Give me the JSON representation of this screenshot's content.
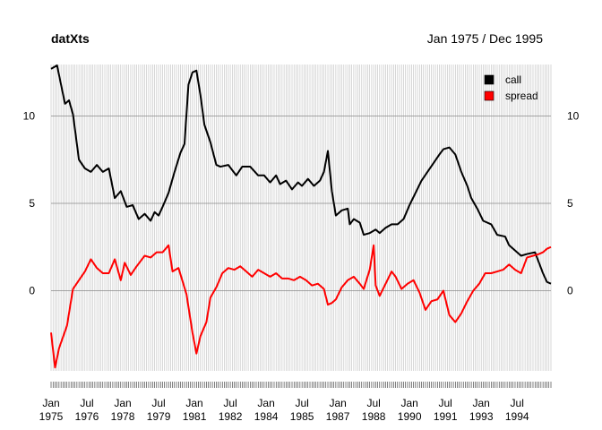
{
  "chart_data": {
    "type": "line",
    "title": "datXts",
    "subtitle": "Jan 1975 / Dec 1995",
    "x_start": "1975-01",
    "x_end": "1995-12",
    "xlim": [
      "1975-01",
      "1995-12"
    ],
    "ylim": [
      -4.5,
      13.3
    ],
    "y_ticks": [
      0,
      5,
      10
    ],
    "y_tick_labels": [
      "0",
      "5",
      "10"
    ],
    "x_tick_labels": [
      {
        "month": "1975-01",
        "label1": "Jan",
        "label2": "1975"
      },
      {
        "month": "1976-07",
        "label1": "Jul",
        "label2": "1976"
      },
      {
        "month": "1978-01",
        "label1": "Jan",
        "label2": "1978"
      },
      {
        "month": "1979-07",
        "label1": "Jul",
        "label2": "1979"
      },
      {
        "month": "1981-01",
        "label1": "Jan",
        "label2": "1981"
      },
      {
        "month": "1982-07",
        "label1": "Jul",
        "label2": "1982"
      },
      {
        "month": "1984-01",
        "label1": "Jan",
        "label2": "1984"
      },
      {
        "month": "1985-07",
        "label1": "Jul",
        "label2": "1985"
      },
      {
        "month": "1987-01",
        "label1": "Jan",
        "label2": "1987"
      },
      {
        "month": "1988-07",
        "label1": "Jul",
        "label2": "1988"
      },
      {
        "month": "1990-01",
        "label1": "Jan",
        "label2": "1990"
      },
      {
        "month": "1991-07",
        "label1": "Jul",
        "label2": "1991"
      },
      {
        "month": "1993-01",
        "label1": "Jan",
        "label2": "1993"
      },
      {
        "month": "1994-07",
        "label1": "Jul",
        "label2": "1994"
      }
    ],
    "grid": true,
    "legend_position": "top-right",
    "series": [
      {
        "name": "call",
        "color": "#000000",
        "points": [
          [
            "1975-01",
            12.7
          ],
          [
            "1975-04",
            12.9
          ],
          [
            "1975-08",
            10.7
          ],
          [
            "1975-10",
            10.9
          ],
          [
            "1975-12",
            10.1
          ],
          [
            "1976-03",
            7.5
          ],
          [
            "1976-06",
            7.0
          ],
          [
            "1976-09",
            6.8
          ],
          [
            "1976-12",
            7.2
          ],
          [
            "1977-03",
            6.8
          ],
          [
            "1977-06",
            7.0
          ],
          [
            "1977-09",
            5.3
          ],
          [
            "1977-12",
            5.7
          ],
          [
            "1978-03",
            4.8
          ],
          [
            "1978-06",
            4.9
          ],
          [
            "1978-09",
            4.1
          ],
          [
            "1978-12",
            4.4
          ],
          [
            "1979-03",
            4.0
          ],
          [
            "1979-05",
            4.5
          ],
          [
            "1979-07",
            4.3
          ],
          [
            "1979-09",
            4.8
          ],
          [
            "1979-12",
            5.6
          ],
          [
            "1980-03",
            6.8
          ],
          [
            "1980-06",
            7.9
          ],
          [
            "1980-08",
            8.4
          ],
          [
            "1980-10",
            11.8
          ],
          [
            "1980-12",
            12.5
          ],
          [
            "1981-02",
            12.6
          ],
          [
            "1981-04",
            11.2
          ],
          [
            "1981-06",
            9.5
          ],
          [
            "1981-09",
            8.5
          ],
          [
            "1981-12",
            7.2
          ],
          [
            "1982-02",
            7.1
          ],
          [
            "1982-06",
            7.2
          ],
          [
            "1982-10",
            6.6
          ],
          [
            "1983-01",
            7.1
          ],
          [
            "1983-05",
            7.1
          ],
          [
            "1983-09",
            6.6
          ],
          [
            "1983-12",
            6.6
          ],
          [
            "1984-03",
            6.2
          ],
          [
            "1984-06",
            6.6
          ],
          [
            "1984-08",
            6.1
          ],
          [
            "1984-11",
            6.3
          ],
          [
            "1985-02",
            5.8
          ],
          [
            "1985-05",
            6.2
          ],
          [
            "1985-07",
            6.0
          ],
          [
            "1985-10",
            6.4
          ],
          [
            "1986-01",
            6.0
          ],
          [
            "1986-04",
            6.3
          ],
          [
            "1986-06",
            6.8
          ],
          [
            "1986-08",
            8.0
          ],
          [
            "1986-10",
            5.7
          ],
          [
            "1986-12",
            4.3
          ],
          [
            "1987-03",
            4.6
          ],
          [
            "1987-06",
            4.7
          ],
          [
            "1987-07",
            3.8
          ],
          [
            "1987-09",
            4.1
          ],
          [
            "1987-12",
            3.9
          ],
          [
            "1988-02",
            3.2
          ],
          [
            "1988-05",
            3.3
          ],
          [
            "1988-08",
            3.5
          ],
          [
            "1988-10",
            3.3
          ],
          [
            "1989-01",
            3.6
          ],
          [
            "1989-04",
            3.8
          ],
          [
            "1989-07",
            3.8
          ],
          [
            "1989-10",
            4.1
          ],
          [
            "1990-01",
            4.9
          ],
          [
            "1990-04",
            5.6
          ],
          [
            "1990-07",
            6.3
          ],
          [
            "1990-10",
            6.8
          ],
          [
            "1991-01",
            7.3
          ],
          [
            "1991-04",
            7.8
          ],
          [
            "1991-06",
            8.1
          ],
          [
            "1991-09",
            8.2
          ],
          [
            "1991-12",
            7.8
          ],
          [
            "1992-03",
            6.8
          ],
          [
            "1992-06",
            6.0
          ],
          [
            "1992-08",
            5.3
          ],
          [
            "1992-11",
            4.7
          ],
          [
            "1993-02",
            4.0
          ],
          [
            "1993-06",
            3.8
          ],
          [
            "1993-09",
            3.2
          ],
          [
            "1994-01",
            3.1
          ],
          [
            "1994-03",
            2.6
          ],
          [
            "1994-06",
            2.3
          ],
          [
            "1994-09",
            2.0
          ],
          [
            "1994-12",
            2.1
          ],
          [
            "1995-04",
            2.2
          ],
          [
            "1995-06",
            1.6
          ],
          [
            "1995-08",
            1.0
          ],
          [
            "1995-10",
            0.5
          ],
          [
            "1995-12",
            0.4
          ]
        ]
      },
      {
        "name": "spread",
        "color": "#ff0000",
        "points": [
          [
            "1975-01",
            -2.4
          ],
          [
            "1975-03",
            -4.4
          ],
          [
            "1975-05",
            -3.3
          ],
          [
            "1975-09",
            -2.0
          ],
          [
            "1975-12",
            0.1
          ],
          [
            "1976-03",
            0.6
          ],
          [
            "1976-06",
            1.1
          ],
          [
            "1976-09",
            1.8
          ],
          [
            "1976-12",
            1.3
          ],
          [
            "1977-03",
            1.0
          ],
          [
            "1977-06",
            1.0
          ],
          [
            "1977-09",
            1.8
          ],
          [
            "1977-12",
            0.6
          ],
          [
            "1978-02",
            1.6
          ],
          [
            "1978-05",
            0.9
          ],
          [
            "1978-08",
            1.4
          ],
          [
            "1978-12",
            2.0
          ],
          [
            "1979-03",
            1.9
          ],
          [
            "1979-06",
            2.2
          ],
          [
            "1979-09",
            2.2
          ],
          [
            "1979-12",
            2.6
          ],
          [
            "1980-02",
            1.1
          ],
          [
            "1980-05",
            1.3
          ],
          [
            "1980-09",
            -0.2
          ],
          [
            "1980-12",
            -2.4
          ],
          [
            "1981-02",
            -3.6
          ],
          [
            "1981-04",
            -2.6
          ],
          [
            "1981-07",
            -1.8
          ],
          [
            "1981-09",
            -0.4
          ],
          [
            "1981-12",
            0.2
          ],
          [
            "1982-03",
            1.0
          ],
          [
            "1982-06",
            1.3
          ],
          [
            "1982-09",
            1.2
          ],
          [
            "1982-12",
            1.4
          ],
          [
            "1983-03",
            1.1
          ],
          [
            "1983-06",
            0.8
          ],
          [
            "1983-09",
            1.2
          ],
          [
            "1983-12",
            1.0
          ],
          [
            "1984-03",
            0.8
          ],
          [
            "1984-06",
            1.0
          ],
          [
            "1984-09",
            0.7
          ],
          [
            "1984-12",
            0.7
          ],
          [
            "1985-03",
            0.6
          ],
          [
            "1985-06",
            0.8
          ],
          [
            "1985-09",
            0.6
          ],
          [
            "1985-12",
            0.3
          ],
          [
            "1986-03",
            0.4
          ],
          [
            "1986-06",
            0.1
          ],
          [
            "1986-08",
            -0.8
          ],
          [
            "1986-10",
            -0.7
          ],
          [
            "1986-12",
            -0.5
          ],
          [
            "1987-03",
            0.2
          ],
          [
            "1987-06",
            0.6
          ],
          [
            "1987-09",
            0.8
          ],
          [
            "1987-12",
            0.4
          ],
          [
            "1988-02",
            0.1
          ],
          [
            "1988-05",
            1.2
          ],
          [
            "1988-07",
            2.6
          ],
          [
            "1988-08",
            0.3
          ],
          [
            "1988-10",
            -0.3
          ],
          [
            "1989-01",
            0.4
          ],
          [
            "1989-04",
            1.1
          ],
          [
            "1989-06",
            0.8
          ],
          [
            "1989-09",
            0.1
          ],
          [
            "1989-12",
            0.4
          ],
          [
            "1990-03",
            0.6
          ],
          [
            "1990-06",
            -0.1
          ],
          [
            "1990-09",
            -1.1
          ],
          [
            "1990-12",
            -0.6
          ],
          [
            "1991-03",
            -0.5
          ],
          [
            "1991-06",
            0.0
          ],
          [
            "1991-09",
            -1.4
          ],
          [
            "1991-12",
            -1.8
          ],
          [
            "1992-03",
            -1.3
          ],
          [
            "1992-06",
            -0.6
          ],
          [
            "1992-09",
            0.0
          ],
          [
            "1992-12",
            0.4
          ],
          [
            "1993-03",
            1.0
          ],
          [
            "1993-06",
            1.0
          ],
          [
            "1993-09",
            1.1
          ],
          [
            "1993-12",
            1.2
          ],
          [
            "1994-03",
            1.5
          ],
          [
            "1994-06",
            1.2
          ],
          [
            "1994-09",
            1.0
          ],
          [
            "1994-12",
            1.9
          ],
          [
            "1995-03",
            2.0
          ],
          [
            "1995-06",
            2.1
          ],
          [
            "1995-08",
            2.2
          ],
          [
            "1995-10",
            2.4
          ],
          [
            "1995-12",
            2.5
          ]
        ]
      }
    ]
  }
}
